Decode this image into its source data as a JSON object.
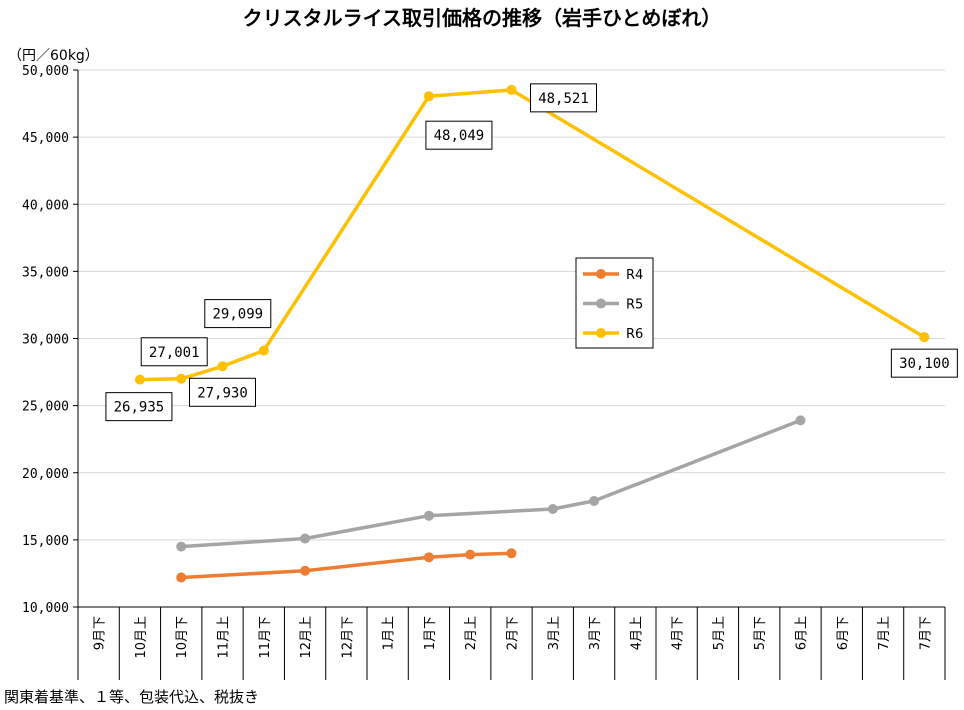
{
  "chart_data": {
    "type": "line",
    "title": "クリスタルライス取引価格の推移（岩手ひとめぼれ）",
    "ylabel": "（円／60kg）",
    "categories": [
      "9月下",
      "10月上",
      "10月下",
      "11月上",
      "11月下",
      "12月上",
      "12月下",
      "1月上",
      "1月下",
      "2月上",
      "2月下",
      "3月上",
      "3月下",
      "4月上",
      "4月下",
      "5月上",
      "5月下",
      "6月上",
      "6月下",
      "7月上",
      "7月下"
    ],
    "ylim": [
      10000,
      50000
    ],
    "yticks": [
      10000,
      15000,
      20000,
      25000,
      30000,
      35000,
      40000,
      45000,
      50000
    ],
    "grid": true,
    "legend": "center",
    "series": [
      {
        "name": "R4",
        "color": "#ED7D31",
        "data_labels": false,
        "values": [
          null,
          null,
          12200,
          null,
          null,
          12700,
          null,
          null,
          13700,
          13900,
          14000,
          null,
          null,
          null,
          null,
          null,
          null,
          null,
          null,
          null,
          null
        ]
      },
      {
        "name": "R5",
        "color": "#A5A5A5",
        "data_labels": false,
        "values": [
          null,
          null,
          14500,
          null,
          null,
          15100,
          null,
          null,
          16800,
          null,
          null,
          17300,
          17900,
          null,
          null,
          null,
          null,
          23900,
          null,
          null,
          null
        ]
      },
      {
        "name": "R6",
        "color": "#FFC000",
        "data_labels": true,
        "values": [
          null,
          26935,
          27001,
          27930,
          29099,
          null,
          null,
          null,
          48049,
          null,
          48521,
          null,
          null,
          null,
          null,
          null,
          null,
          null,
          null,
          null,
          30100
        ]
      }
    ]
  },
  "footnote": "関東着基準、１等、包装代込、税抜き"
}
